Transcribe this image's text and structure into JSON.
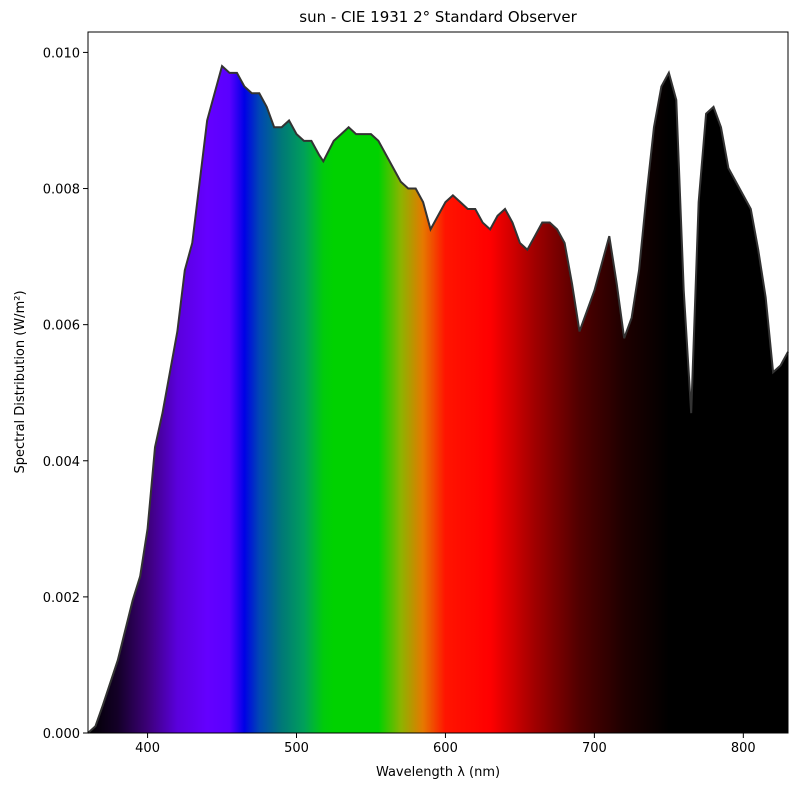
{
  "chart_data": {
    "type": "area",
    "title": "sun - CIE 1931 2° Standard Observer",
    "x_label": "Wavelength λ (nm)",
    "y_label": "Spectral Distribution (W/m²)",
    "x": [
      360,
      365,
      370,
      380,
      390,
      395,
      400,
      405,
      410,
      420,
      425,
      430,
      435,
      440,
      450,
      455,
      460,
      465,
      470,
      475,
      480,
      485,
      490,
      495,
      500,
      505,
      510,
      515,
      518,
      525,
      530,
      535,
      540,
      545,
      550,
      555,
      560,
      565,
      570,
      575,
      580,
      585,
      590,
      595,
      600,
      605,
      610,
      615,
      620,
      625,
      630,
      635,
      640,
      645,
      650,
      655,
      660,
      665,
      670,
      675,
      680,
      685,
      690,
      695,
      700,
      705,
      710,
      715,
      720,
      725,
      730,
      735,
      740,
      745,
      750,
      755,
      760,
      765,
      770,
      775,
      780,
      785,
      790,
      795,
      800,
      805,
      810,
      815,
      820,
      825,
      830
    ],
    "values": [
      0.0,
      0.0001,
      0.00041,
      0.00107,
      0.00195,
      0.0023,
      0.003,
      0.0042,
      0.0047,
      0.0059,
      0.0068,
      0.0072,
      0.0081,
      0.009,
      0.0098,
      0.0097,
      0.0097,
      0.0095,
      0.0094,
      0.0094,
      0.0092,
      0.0089,
      0.0089,
      0.009,
      0.0088,
      0.0087,
      0.0087,
      0.0085,
      0.0084,
      0.0087,
      0.0088,
      0.0089,
      0.0088,
      0.0088,
      0.0088,
      0.0087,
      0.0085,
      0.0083,
      0.0081,
      0.008,
      0.008,
      0.0078,
      0.0074,
      0.0076,
      0.0078,
      0.0079,
      0.0078,
      0.0077,
      0.0077,
      0.0075,
      0.0074,
      0.0076,
      0.0077,
      0.0075,
      0.0072,
      0.0071,
      0.0073,
      0.0075,
      0.0075,
      0.0074,
      0.0072,
      0.0066,
      0.0059,
      0.0062,
      0.0065,
      0.0069,
      0.0073,
      0.0066,
      0.0058,
      0.0061,
      0.0068,
      0.0079,
      0.0089,
      0.0095,
      0.0097,
      0.0093,
      0.0065,
      0.0047,
      0.0078,
      0.0091,
      0.0092,
      0.0089,
      0.0083,
      0.0081,
      0.0079,
      0.0077,
      0.0071,
      0.0064,
      0.0053,
      0.0054,
      0.0056
    ],
    "line_color": "#333333",
    "xlim": [
      360,
      830
    ],
    "ylim": [
      0,
      0.0103
    ],
    "xticks": [
      400,
      500,
      600,
      700,
      800
    ],
    "yticks": [
      {
        "value": 0,
        "label": "0.000"
      },
      {
        "value": 0.002,
        "label": "0.002"
      },
      {
        "value": 0.004,
        "label": "0.004"
      },
      {
        "value": 0.006,
        "label": "0.006"
      },
      {
        "value": 0.008,
        "label": "0.008"
      },
      {
        "value": 0.01,
        "label": "0.010"
      }
    ]
  }
}
